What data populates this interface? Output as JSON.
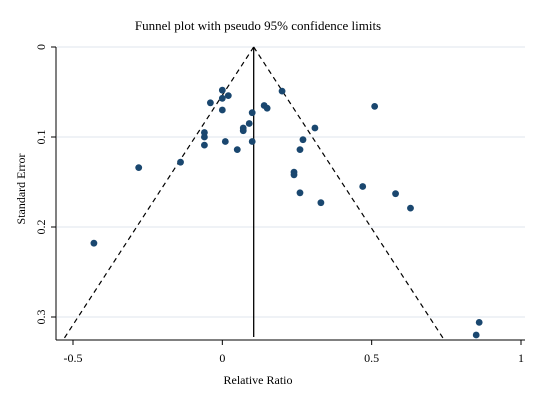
{
  "chart_data": {
    "type": "scatter",
    "title": "Funnel plot with pseudo 95% confidence limits",
    "xlabel": "Relative Ratio",
    "ylabel": "Standard Error",
    "xlim": [
      -0.55,
      1.0
    ],
    "ylim": [
      0,
      0.33
    ],
    "y_reversed": true,
    "x_ticks": [
      -0.5,
      0,
      0.5,
      1
    ],
    "x_tick_labels": [
      "-0.5",
      "0",
      "0.5",
      "1"
    ],
    "y_ticks": [
      0,
      0.1,
      0.2,
      0.3
    ],
    "y_tick_labels": [
      "0",
      "0.1",
      "0.2",
      "0.3"
    ],
    "grid": "horizontal",
    "pooled_estimate": 0.105,
    "ci_z": 1.96,
    "funnel_limit_se": 0.325,
    "points": [
      {
        "x": 0.0,
        "y": 0.048
      },
      {
        "x": 0.02,
        "y": 0.054
      },
      {
        "x": 0.0,
        "y": 0.057
      },
      {
        "x": -0.04,
        "y": 0.062
      },
      {
        "x": 0.14,
        "y": 0.065
      },
      {
        "x": 0.15,
        "y": 0.068
      },
      {
        "x": 0.0,
        "y": 0.07
      },
      {
        "x": 0.1,
        "y": 0.073
      },
      {
        "x": 0.09,
        "y": 0.085
      },
      {
        "x": 0.07,
        "y": 0.09
      },
      {
        "x": 0.07,
        "y": 0.093
      },
      {
        "x": -0.06,
        "y": 0.095
      },
      {
        "x": -0.06,
        "y": 0.1
      },
      {
        "x": 0.1,
        "y": 0.105
      },
      {
        "x": 0.01,
        "y": 0.105
      },
      {
        "x": -0.06,
        "y": 0.109
      },
      {
        "x": 0.05,
        "y": 0.114
      },
      {
        "x": -0.14,
        "y": 0.128
      },
      {
        "x": -0.28,
        "y": 0.134
      },
      {
        "x": 0.2,
        "y": 0.049
      },
      {
        "x": 0.51,
        "y": 0.066
      },
      {
        "x": 0.31,
        "y": 0.09
      },
      {
        "x": 0.27,
        "y": 0.103
      },
      {
        "x": 0.26,
        "y": 0.114
      },
      {
        "x": 0.24,
        "y": 0.139
      },
      {
        "x": 0.24,
        "y": 0.142
      },
      {
        "x": 0.47,
        "y": 0.155
      },
      {
        "x": 0.26,
        "y": 0.162
      },
      {
        "x": 0.58,
        "y": 0.163
      },
      {
        "x": 0.33,
        "y": 0.173
      },
      {
        "x": 0.63,
        "y": 0.179
      },
      {
        "x": -0.43,
        "y": 0.218
      },
      {
        "x": 0.86,
        "y": 0.306
      },
      {
        "x": 0.85,
        "y": 0.32
      }
    ],
    "colors": {
      "point": "#1a476f",
      "funnel": "#000000",
      "grid": "#dfe6ee",
      "frame": "#000000"
    }
  }
}
